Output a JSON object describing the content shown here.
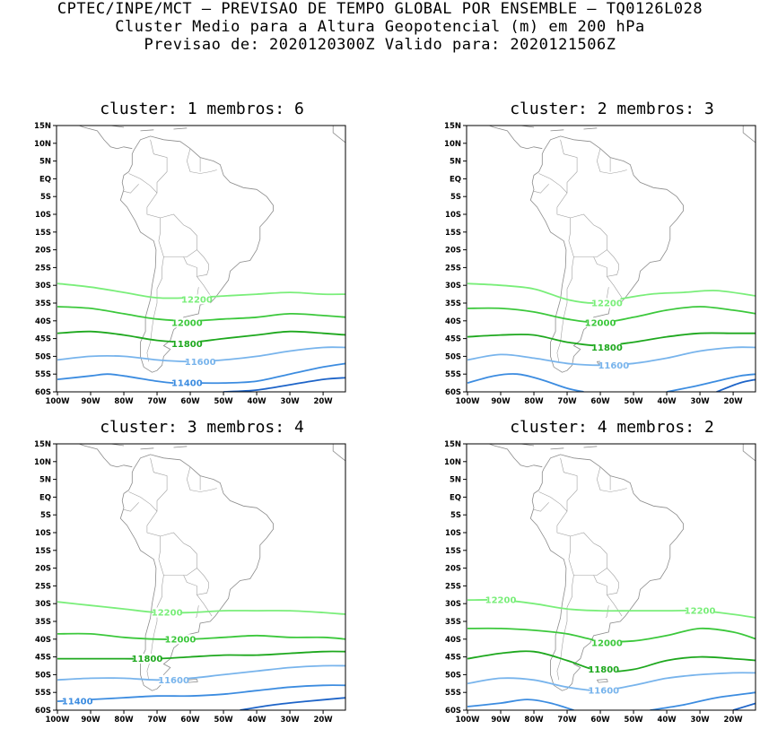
{
  "header": {
    "line1": "CPTEC/INPE/MCT – PREVISAO DE TEMPO GLOBAL POR ENSEMBLE – TQ0126L028",
    "line2": "Cluster Medio para a Altura Geopotencial (m) em 200 hPa",
    "line3": "Previsao de: 2020120300Z   Valido para: 2020121506Z"
  },
  "axes": {
    "lat_labels": [
      "15N",
      "10N",
      "5N",
      "EQ",
      "5S",
      "10S",
      "15S",
      "20S",
      "25S",
      "30S",
      "35S",
      "40S",
      "45S",
      "50S",
      "55S",
      "60S"
    ],
    "lon_labels": [
      "100W",
      "90W",
      "80W",
      "70W",
      "60W",
      "50W",
      "40W",
      "30W",
      "20W"
    ]
  },
  "contour_colors": {
    "12200": "#7aee7a",
    "12000": "#3cc83c",
    "11800": "#1ea81e",
    "11600": "#78b4ec",
    "11400": "#3c8ce0",
    "11200": "#1e64c8"
  },
  "panels": [
    {
      "title": "cluster: 1   membros: 6",
      "labels": [
        {
          "text": "12200",
          "key": "12200"
        },
        {
          "text": "12000",
          "key": "12000"
        },
        {
          "text": "11800",
          "key": "11800"
        },
        {
          "text": "11600",
          "key": "11600"
        },
        {
          "text": "11400",
          "key": "11400"
        }
      ]
    },
    {
      "title": "cluster: 2   membros: 3",
      "labels": [
        {
          "text": "12200",
          "key": "12200"
        },
        {
          "text": "12000",
          "key": "12000"
        },
        {
          "text": "11800",
          "key": "11800"
        },
        {
          "text": "11600",
          "key": "11600"
        }
      ]
    },
    {
      "title": "cluster: 3   membros: 4",
      "labels": [
        {
          "text": "12200",
          "key": "12200"
        },
        {
          "text": "12000",
          "key": "12000"
        },
        {
          "text": "11800",
          "key": "11800"
        },
        {
          "text": "11600",
          "key": "11600"
        },
        {
          "text": "11400",
          "key": "11400"
        }
      ]
    },
    {
      "title": "cluster: 4   membros: 2",
      "labels": [
        {
          "text": "12200",
          "key": "12200"
        },
        {
          "text": "12200",
          "key": "12200"
        },
        {
          "text": "12000",
          "key": "12000"
        },
        {
          "text": "11800",
          "key": "11800"
        },
        {
          "text": "11600",
          "key": "11600"
        }
      ]
    }
  ]
}
